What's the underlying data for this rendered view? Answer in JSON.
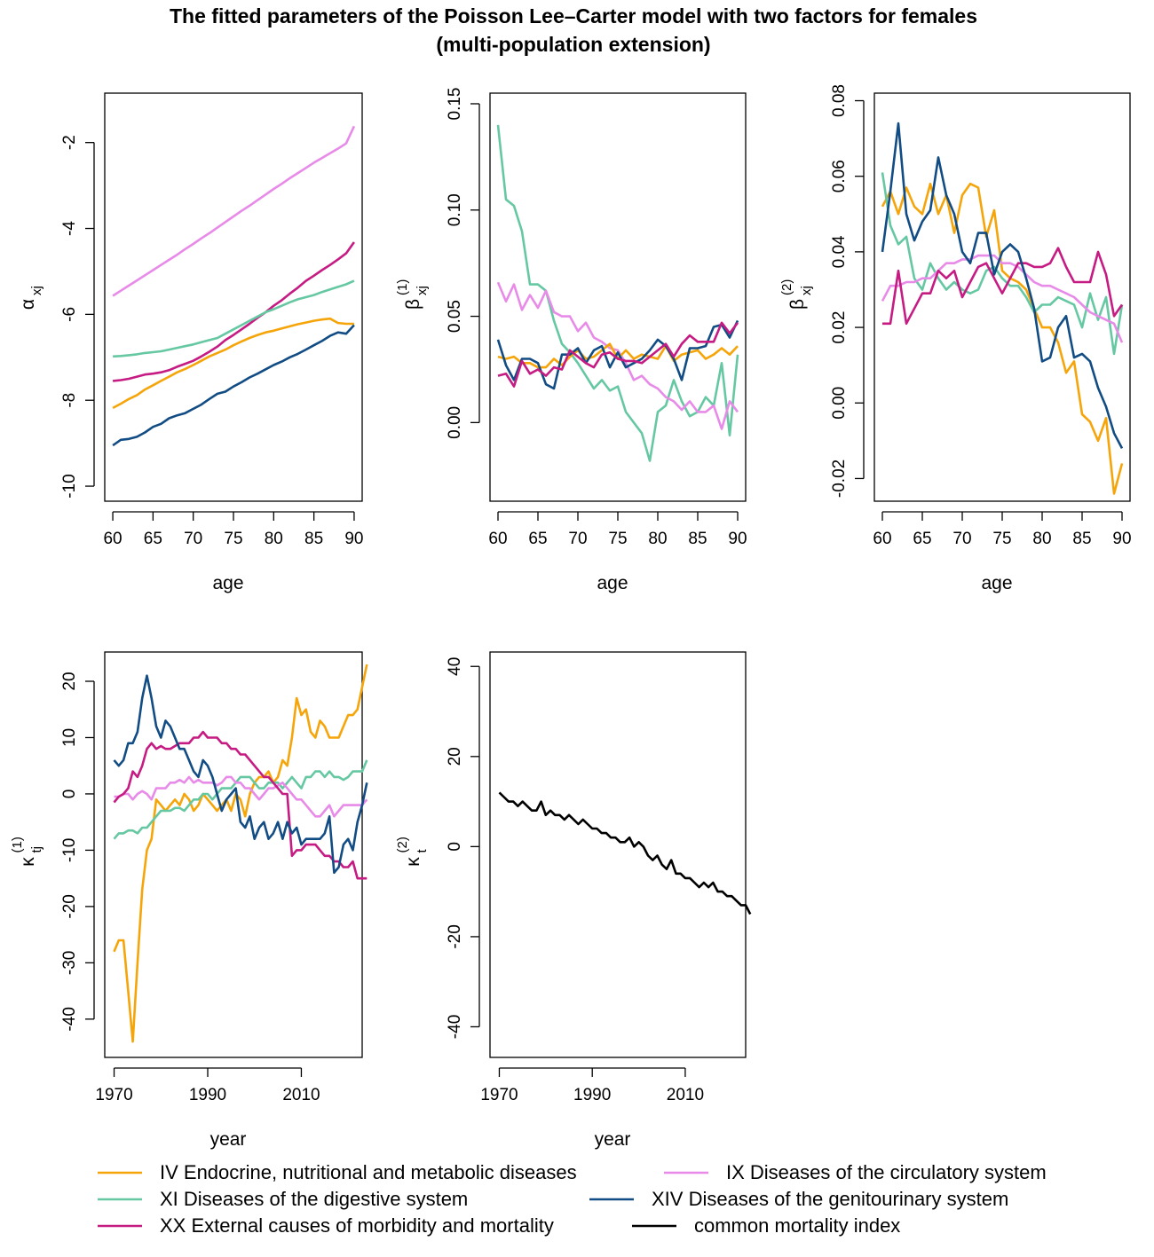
{
  "title_line1": "The fitted parameters of the Poisson Lee–Carter model with two factors for females",
  "title_line2": "(multi-population extension)",
  "colors": {
    "IV": "#F5A50A",
    "IX": "#E88BE8",
    "XI": "#66C8A3",
    "XIV": "#124C84",
    "XX": "#C51B82",
    "common": "#000000"
  },
  "legend": [
    {
      "key": "IV",
      "label": "IV Endocrine, nutritional and metabolic diseases"
    },
    {
      "key": "IX",
      "label": "IX Diseases of the circulatory system"
    },
    {
      "key": "XI",
      "label": "XI Diseases of the digestive system"
    },
    {
      "key": "XIV",
      "label": "XIV Diseases of the genitourinary system"
    },
    {
      "key": "XX",
      "label": "XX External causes of morbidity and mortality"
    },
    {
      "key": "common",
      "label": "common mortality index"
    }
  ],
  "chart_data": [
    {
      "id": "alpha",
      "type": "line",
      "xlabel": "age",
      "ylabel_main": "α",
      "ylabel_sub": "xj",
      "ylabel_sup": "",
      "xlim": [
        59,
        91
      ],
      "ylim": [
        -10.35,
        -0.85
      ],
      "xticks": [
        60,
        65,
        70,
        75,
        80,
        85,
        90
      ],
      "yticks": [
        -10,
        -8,
        -6,
        -4,
        -2
      ],
      "x_start": 60,
      "x_step": 1,
      "series": [
        {
          "key": "IX",
          "values": [
            -5.57,
            -5.45,
            -5.33,
            -5.21,
            -5.09,
            -4.97,
            -4.85,
            -4.73,
            -4.61,
            -4.48,
            -4.36,
            -4.23,
            -4.11,
            -3.98,
            -3.85,
            -3.72,
            -3.59,
            -3.47,
            -3.34,
            -3.21,
            -3.08,
            -2.96,
            -2.83,
            -2.71,
            -2.59,
            -2.47,
            -2.36,
            -2.25,
            -2.14,
            -2.02,
            -1.62
          ]
        },
        {
          "key": "XX",
          "values": [
            -7.55,
            -7.53,
            -7.5,
            -7.45,
            -7.4,
            -7.38,
            -7.35,
            -7.3,
            -7.22,
            -7.15,
            -7.08,
            -6.98,
            -6.87,
            -6.75,
            -6.6,
            -6.48,
            -6.35,
            -6.22,
            -6.08,
            -5.95,
            -5.8,
            -5.67,
            -5.52,
            -5.38,
            -5.22,
            -5.1,
            -4.97,
            -4.85,
            -4.72,
            -4.58,
            -4.32
          ]
        },
        {
          "key": "XI",
          "values": [
            -6.98,
            -6.97,
            -6.95,
            -6.93,
            -6.9,
            -6.88,
            -6.86,
            -6.82,
            -6.78,
            -6.74,
            -6.7,
            -6.65,
            -6.6,
            -6.55,
            -6.45,
            -6.35,
            -6.25,
            -6.15,
            -6.05,
            -5.95,
            -5.88,
            -5.8,
            -5.72,
            -5.65,
            -5.6,
            -5.55,
            -5.48,
            -5.42,
            -5.36,
            -5.3,
            -5.22
          ]
        },
        {
          "key": "IV",
          "values": [
            -8.18,
            -8.08,
            -7.97,
            -7.88,
            -7.75,
            -7.65,
            -7.55,
            -7.45,
            -7.35,
            -7.27,
            -7.18,
            -7.08,
            -6.98,
            -6.9,
            -6.82,
            -6.72,
            -6.63,
            -6.55,
            -6.48,
            -6.42,
            -6.38,
            -6.33,
            -6.28,
            -6.23,
            -6.19,
            -6.15,
            -6.12,
            -6.1,
            -6.2,
            -6.22,
            -6.22
          ]
        },
        {
          "key": "XIV",
          "values": [
            -9.05,
            -8.92,
            -8.9,
            -8.85,
            -8.75,
            -8.62,
            -8.55,
            -8.42,
            -8.35,
            -8.3,
            -8.2,
            -8.1,
            -7.97,
            -7.85,
            -7.8,
            -7.68,
            -7.58,
            -7.47,
            -7.38,
            -7.28,
            -7.18,
            -7.1,
            -7.0,
            -6.92,
            -6.82,
            -6.72,
            -6.62,
            -6.5,
            -6.42,
            -6.45,
            -6.25
          ]
        }
      ]
    },
    {
      "id": "beta1",
      "type": "line",
      "xlabel": "age",
      "ylabel_main": "β",
      "ylabel_sub": "xj",
      "ylabel_sup": "(1)",
      "xlim": [
        59,
        91
      ],
      "ylim": [
        -0.037,
        0.155
      ],
      "xticks": [
        60,
        65,
        70,
        75,
        80,
        85,
        90
      ],
      "yticks": [
        0.0,
        0.05,
        0.1,
        0.15
      ],
      "ytick_labels": [
        "0.00",
        "0.05",
        "0.10",
        "0.15"
      ],
      "x_start": 60,
      "x_step": 1,
      "series": [
        {
          "key": "XI",
          "values": [
            0.14,
            0.105,
            0.102,
            0.09,
            0.065,
            0.065,
            0.062,
            0.048,
            0.037,
            0.033,
            0.028,
            0.022,
            0.016,
            0.02,
            0.015,
            0.017,
            0.005,
            0.0,
            -0.005,
            -0.018,
            0.005,
            0.008,
            0.02,
            0.01,
            0.003,
            0.005,
            0.012,
            0.008,
            0.028,
            -0.006,
            0.032
          ]
        },
        {
          "key": "IX",
          "values": [
            0.066,
            0.057,
            0.065,
            0.053,
            0.06,
            0.054,
            0.062,
            0.052,
            0.05,
            0.05,
            0.043,
            0.047,
            0.04,
            0.038,
            0.035,
            0.034,
            0.028,
            0.02,
            0.022,
            0.018,
            0.016,
            0.012,
            0.01,
            0.006,
            0.01,
            0.005,
            0.005,
            0.008,
            -0.003,
            0.01,
            0.005
          ]
        },
        {
          "key": "IV",
          "values": [
            0.031,
            0.03,
            0.031,
            0.028,
            0.028,
            0.026,
            0.026,
            0.03,
            0.027,
            0.031,
            0.034,
            0.03,
            0.031,
            0.034,
            0.037,
            0.03,
            0.034,
            0.03,
            0.032,
            0.031,
            0.03,
            0.036,
            0.029,
            0.032,
            0.033,
            0.034,
            0.03,
            0.032,
            0.035,
            0.032,
            0.036
          ]
        },
        {
          "key": "XIV",
          "values": [
            0.039,
            0.027,
            0.02,
            0.03,
            0.03,
            0.028,
            0.018,
            0.016,
            0.032,
            0.032,
            0.035,
            0.028,
            0.034,
            0.036,
            0.026,
            0.033,
            0.026,
            0.028,
            0.03,
            0.034,
            0.039,
            0.036,
            0.03,
            0.02,
            0.035,
            0.035,
            0.036,
            0.045,
            0.046,
            0.04,
            0.048
          ]
        },
        {
          "key": "XX",
          "values": [
            0.022,
            0.023,
            0.017,
            0.029,
            0.023,
            0.025,
            0.022,
            0.026,
            0.025,
            0.034,
            0.031,
            0.028,
            0.026,
            0.032,
            0.033,
            0.03,
            0.029,
            0.029,
            0.028,
            0.031,
            0.034,
            0.037,
            0.031,
            0.037,
            0.041,
            0.038,
            0.038,
            0.038,
            0.047,
            0.042,
            0.047
          ]
        }
      ]
    },
    {
      "id": "beta2",
      "type": "line",
      "xlabel": "age",
      "ylabel_main": "β",
      "ylabel_sub": "xj",
      "ylabel_sup": "(2)",
      "xlim": [
        59,
        91
      ],
      "ylim": [
        -0.026,
        0.082
      ],
      "xticks": [
        60,
        65,
        70,
        75,
        80,
        85,
        90
      ],
      "yticks": [
        -0.02,
        0.0,
        0.02,
        0.04,
        0.06,
        0.08
      ],
      "ytick_labels": [
        "-0.02",
        "0.00",
        "0.02",
        "0.04",
        "0.06",
        "0.08"
      ],
      "x_start": 60,
      "x_step": 1,
      "series": [
        {
          "key": "IV",
          "values": [
            0.052,
            0.056,
            0.05,
            0.057,
            0.052,
            0.05,
            0.058,
            0.05,
            0.055,
            0.045,
            0.055,
            0.058,
            0.057,
            0.044,
            0.051,
            0.035,
            0.033,
            0.032,
            0.03,
            0.025,
            0.02,
            0.02,
            0.016,
            0.008,
            0.011,
            -0.003,
            -0.005,
            -0.01,
            -0.004,
            -0.024,
            -0.016
          ]
        },
        {
          "key": "XI",
          "values": [
            0.061,
            0.047,
            0.042,
            0.044,
            0.033,
            0.03,
            0.037,
            0.033,
            0.03,
            0.032,
            0.03,
            0.029,
            0.03,
            0.035,
            0.036,
            0.033,
            0.031,
            0.031,
            0.028,
            0.024,
            0.026,
            0.026,
            0.028,
            0.027,
            0.026,
            0.02,
            0.029,
            0.022,
            0.028,
            0.013,
            0.026
          ]
        },
        {
          "key": "IX",
          "values": [
            0.027,
            0.031,
            0.031,
            0.032,
            0.032,
            0.033,
            0.033,
            0.035,
            0.037,
            0.037,
            0.038,
            0.038,
            0.039,
            0.039,
            0.039,
            0.037,
            0.037,
            0.036,
            0.034,
            0.032,
            0.031,
            0.031,
            0.03,
            0.029,
            0.028,
            0.026,
            0.024,
            0.023,
            0.022,
            0.021,
            0.016
          ]
        },
        {
          "key": "XX",
          "values": [
            0.021,
            0.021,
            0.035,
            0.021,
            0.025,
            0.029,
            0.029,
            0.035,
            0.033,
            0.035,
            0.028,
            0.032,
            0.036,
            0.037,
            0.033,
            0.029,
            0.033,
            0.037,
            0.037,
            0.036,
            0.036,
            0.037,
            0.041,
            0.036,
            0.032,
            0.032,
            0.032,
            0.04,
            0.034,
            0.023,
            0.026
          ]
        },
        {
          "key": "XIV",
          "values": [
            0.04,
            0.056,
            0.074,
            0.05,
            0.043,
            0.048,
            0.051,
            0.065,
            0.055,
            0.05,
            0.04,
            0.037,
            0.045,
            0.045,
            0.034,
            0.04,
            0.042,
            0.04,
            0.033,
            0.025,
            0.011,
            0.012,
            0.02,
            0.023,
            0.012,
            0.013,
            0.011,
            0.004,
            -0.001,
            -0.008,
            -0.012
          ]
        }
      ]
    },
    {
      "id": "kappa1",
      "type": "line",
      "xlabel": "year",
      "ylabel_main": "κ",
      "ylabel_sub": "tj",
      "ylabel_sup": "(1)",
      "xlim": [
        1968,
        2023
      ],
      "ylim": [
        -46.8,
        25.2
      ],
      "xticks": [
        1970,
        1990,
        2010
      ],
      "yticks": [
        -40,
        -30,
        -20,
        -10,
        0,
        10,
        20
      ],
      "x_start": 1970,
      "x_step": 1,
      "series": [
        {
          "key": "IV",
          "values": [
            -28,
            -26,
            -26,
            -35,
            -44,
            -30,
            -17,
            -10,
            -8,
            -1,
            -2,
            -3,
            -2,
            -1,
            -2,
            0,
            -1,
            -3,
            -2,
            0,
            -1,
            -2,
            -3,
            -2,
            -1,
            -3,
            0,
            -1,
            -4,
            0,
            2,
            3,
            3,
            4,
            2,
            3,
            6,
            5,
            10,
            17,
            14,
            15,
            11,
            10,
            13,
            12,
            10,
            10,
            10,
            12,
            14,
            14,
            15,
            19,
            23
          ]
        },
        {
          "key": "XI",
          "values": [
            -8,
            -7,
            -7,
            -6.5,
            -6.5,
            -7,
            -6,
            -6,
            -5,
            -4,
            -3,
            -3,
            -3,
            -2.5,
            -2.5,
            -3,
            -2,
            -1,
            -1,
            0,
            0,
            -1,
            0,
            1,
            1,
            1,
            2,
            3,
            3,
            3,
            2,
            1,
            1,
            2,
            2,
            2,
            1,
            2,
            3,
            2,
            1,
            3,
            3,
            4,
            4,
            3,
            4,
            3,
            3,
            2.5,
            3,
            4,
            4,
            4,
            6
          ]
        },
        {
          "key": "IX",
          "values": [
            -0.5,
            -0.5,
            0,
            0,
            -1,
            0,
            0.5,
            0,
            -1,
            1,
            1,
            1,
            2,
            2,
            2.5,
            2,
            3,
            2,
            2.5,
            2,
            2,
            2,
            1.5,
            2,
            3,
            3,
            2,
            2,
            1,
            1,
            0,
            -1,
            0,
            1,
            1,
            1.5,
            2,
            1,
            0,
            -1,
            -1,
            -2,
            -3,
            -4,
            -4,
            -3,
            -2,
            -4,
            -3,
            -2,
            -2,
            -2,
            -2,
            -2,
            -1
          ]
        },
        {
          "key": "XX",
          "values": [
            -1.5,
            -0.5,
            0,
            1,
            4,
            3,
            5,
            8,
            9,
            8,
            8.5,
            8,
            8,
            8.5,
            9,
            9,
            9,
            10,
            10,
            11,
            10,
            10,
            10,
            9,
            9,
            8,
            8,
            7,
            7,
            6,
            5,
            4,
            3,
            3,
            2,
            1,
            0,
            0,
            -11,
            -10,
            -10,
            -9,
            -9,
            -9,
            -10,
            -11,
            -11,
            -12,
            -12,
            -13,
            -13,
            -12,
            -15,
            -15,
            -15
          ]
        },
        {
          "key": "XIV",
          "values": [
            6,
            5,
            6,
            9,
            9,
            11,
            17,
            21,
            17,
            12,
            10,
            13,
            12,
            10,
            8,
            8,
            6,
            4,
            3,
            6,
            5,
            3,
            0,
            -3,
            -1,
            0,
            1,
            -5,
            -6,
            -4,
            -8,
            -6,
            -5,
            -8,
            -7,
            -5,
            -8,
            -5,
            -7,
            -6,
            -9,
            -8,
            -8,
            -8,
            -8,
            -7,
            -4,
            -14,
            -13,
            -9,
            -8,
            -10,
            -5,
            -2,
            2
          ]
        }
      ]
    },
    {
      "id": "kappa2",
      "type": "line",
      "xlabel": "year",
      "ylabel_main": "κ",
      "ylabel_sub": "t",
      "ylabel_sup": "(2)",
      "xlim": [
        1968,
        2023
      ],
      "ylim": [
        -46.8,
        43.2
      ],
      "xticks": [
        1970,
        1990,
        2010
      ],
      "yticks": [
        -40,
        -20,
        0,
        20,
        40
      ],
      "x_start": 1970,
      "x_step": 1,
      "series": [
        {
          "key": "common",
          "values": [
            12,
            11,
            10,
            10,
            9,
            10,
            9,
            8,
            8,
            10,
            7,
            8,
            7,
            7,
            6,
            7,
            6,
            5,
            6,
            5,
            4,
            4,
            3,
            3,
            2,
            2,
            1,
            1,
            2,
            0,
            1,
            0,
            -2,
            -3,
            -2,
            -4,
            -5,
            -3,
            -6,
            -6,
            -7,
            -7,
            -8,
            -9,
            -8,
            -9,
            -8,
            -10,
            -10,
            -11,
            -11,
            -12,
            -13,
            -13,
            -15
          ]
        }
      ]
    }
  ]
}
